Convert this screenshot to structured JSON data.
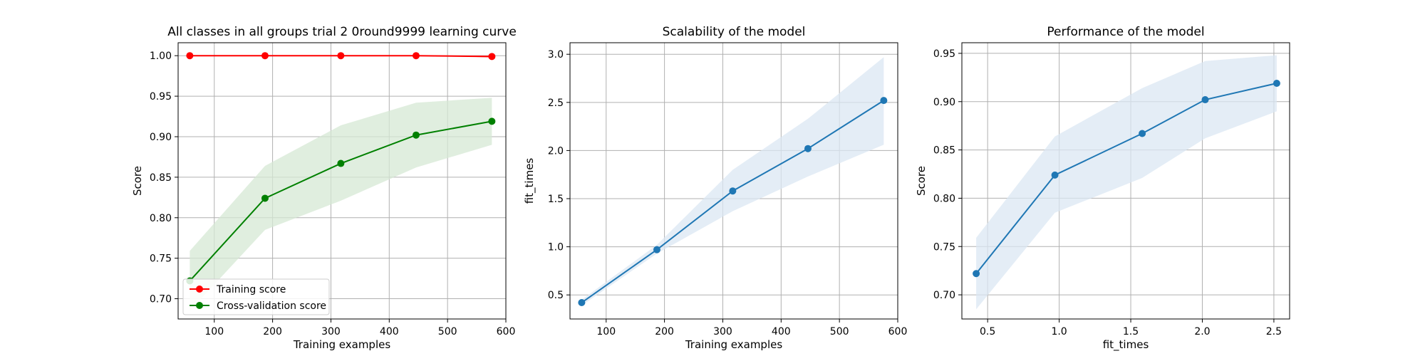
{
  "chart_data": [
    {
      "type": "line",
      "title": "All classes in all groups trial 2 0round9999 learning curve",
      "xlabel": "Training examples",
      "ylabel": "Score",
      "xlim": [
        38,
        600
      ],
      "ylim": [
        0.675,
        1.016
      ],
      "xticks": [
        100,
        200,
        300,
        400,
        500,
        600
      ],
      "yticks": [
        0.7,
        0.75,
        0.8,
        0.85,
        0.9,
        0.95,
        1.0
      ],
      "ytick_labels": [
        "0.70",
        "0.75",
        "0.80",
        "0.85",
        "0.90",
        "0.95",
        "1.00"
      ],
      "grid": true,
      "legend_position": "lower-left",
      "x": [
        58,
        187,
        317,
        446,
        576
      ],
      "series": [
        {
          "name": "Training score",
          "color": "#ff0000",
          "values": [
            1.0,
            1.0,
            1.0,
            1.0,
            0.999
          ],
          "band_lower": [
            1.0,
            1.0,
            1.0,
            1.0,
            0.998
          ],
          "band_upper": [
            1.0,
            1.0,
            1.0,
            1.0,
            1.0
          ]
        },
        {
          "name": "Cross-validation score",
          "color": "#008000",
          "values": [
            0.722,
            0.824,
            0.867,
            0.902,
            0.919
          ],
          "band_lower": [
            0.685,
            0.785,
            0.821,
            0.862,
            0.89
          ],
          "band_upper": [
            0.759,
            0.864,
            0.914,
            0.942,
            0.948
          ]
        }
      ]
    },
    {
      "type": "line",
      "title": "Scalability of the model",
      "xlabel": "Training examples",
      "ylabel": "fit_times",
      "xlim": [
        38,
        600
      ],
      "ylim": [
        0.25,
        3.12
      ],
      "xticks": [
        100,
        200,
        300,
        400,
        500,
        600
      ],
      "yticks": [
        0.5,
        1.0,
        1.5,
        2.0,
        2.5,
        3.0
      ],
      "ytick_labels": [
        "0.5",
        "1.0",
        "1.5",
        "2.0",
        "2.5",
        "3.0"
      ],
      "grid": true,
      "x": [
        58,
        187,
        317,
        446,
        576
      ],
      "series": [
        {
          "color": "#1f77b4",
          "values": [
            0.42,
            0.97,
            1.58,
            2.02,
            2.52
          ],
          "band_lower": [
            0.39,
            0.93,
            1.37,
            1.73,
            2.06
          ],
          "band_upper": [
            0.45,
            1.02,
            1.8,
            2.33,
            2.97
          ]
        }
      ]
    },
    {
      "type": "line",
      "title": "Performance of the model",
      "xlabel": "fit_times",
      "ylabel": "Score",
      "xlim": [
        0.32,
        2.61
      ],
      "ylim": [
        0.675,
        0.961
      ],
      "xticks": [
        0.5,
        1.0,
        1.5,
        2.0,
        2.5
      ],
      "xtick_labels": [
        "0.5",
        "1.0",
        "1.5",
        "2.0",
        "2.5"
      ],
      "yticks": [
        0.7,
        0.75,
        0.8,
        0.85,
        0.9,
        0.95
      ],
      "ytick_labels": [
        "0.70",
        "0.75",
        "0.80",
        "0.85",
        "0.90",
        "0.95"
      ],
      "grid": true,
      "x": [
        0.42,
        0.97,
        1.58,
        2.02,
        2.52
      ],
      "series": [
        {
          "color": "#1f77b4",
          "values": [
            0.722,
            0.824,
            0.867,
            0.902,
            0.919
          ],
          "band_lower": [
            0.685,
            0.785,
            0.821,
            0.862,
            0.89
          ],
          "band_upper": [
            0.759,
            0.864,
            0.914,
            0.942,
            0.948
          ]
        }
      ]
    }
  ]
}
